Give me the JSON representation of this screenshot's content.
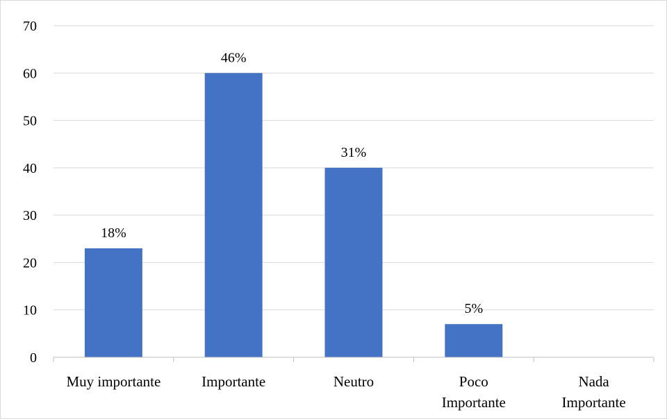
{
  "chart_data": {
    "type": "bar",
    "title": "",
    "xlabel": "",
    "ylabel": "",
    "ylim": [
      0,
      70
    ],
    "ytick_step": 10,
    "yticks": [
      "0",
      "10",
      "20",
      "30",
      "40",
      "50",
      "60",
      "70"
    ],
    "grid": true,
    "legend": "none",
    "bar_color": "#4472c4",
    "categories": [
      [
        "Muy importante"
      ],
      [
        "Importante"
      ],
      [
        "Neutro"
      ],
      [
        "Poco",
        "Importante"
      ],
      [
        "Nada",
        "Importante"
      ]
    ],
    "values": [
      23,
      60,
      40,
      7,
      0
    ],
    "data_labels": [
      "18%",
      "46%",
      "31%",
      "5%",
      ""
    ]
  }
}
